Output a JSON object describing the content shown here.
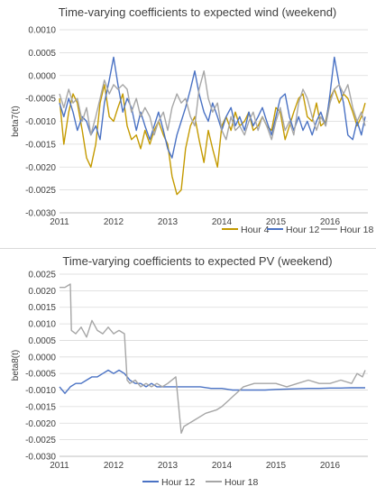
{
  "chart_data": [
    {
      "type": "line",
      "title": "Time-varying coefficients to expected wind (weekend)",
      "xlabel": "",
      "ylabel": "beta7(t)",
      "xlim": [
        2011,
        2016.7
      ],
      "ylim": [
        -0.003,
        0.001
      ],
      "y_ticks": [
        0.001,
        0.0005,
        0,
        -0.0005,
        -0.001,
        -0.0015,
        -0.002,
        -0.0025,
        -0.003
      ],
      "y_tick_labels": [
        "0.0010",
        "0.0005",
        "0.0000",
        "-0.0005",
        "-0.0010",
        "-0.0015",
        "-0.0020",
        "-0.0025",
        "-0.0030"
      ],
      "x_ticks": [
        2011,
        2012,
        2013,
        2014,
        2015,
        2016
      ],
      "x_tick_labels": [
        "2011",
        "2012",
        "2013",
        "2014",
        "2015",
        "2016"
      ],
      "grid": true,
      "legend_position": "bottom",
      "series": [
        {
          "name": "Hour 4",
          "color": "#c49a00",
          "x": [
            2011.0,
            2011.08,
            2011.17,
            2011.25,
            2011.33,
            2011.42,
            2011.5,
            2011.58,
            2011.67,
            2011.75,
            2011.83,
            2011.92,
            2012.0,
            2012.08,
            2012.17,
            2012.25,
            2012.33,
            2012.42,
            2012.5,
            2012.58,
            2012.67,
            2012.75,
            2012.83,
            2012.92,
            2013.0,
            2013.08,
            2013.17,
            2013.25,
            2013.33,
            2013.42,
            2013.5,
            2013.58,
            2013.67,
            2013.75,
            2013.83,
            2013.92,
            2014.0,
            2014.08,
            2014.17,
            2014.25,
            2014.33,
            2014.42,
            2014.5,
            2014.58,
            2014.67,
            2014.75,
            2014.83,
            2014.92,
            2015.0,
            2015.08,
            2015.17,
            2015.25,
            2015.33,
            2015.42,
            2015.5,
            2015.58,
            2015.67,
            2015.75,
            2015.83,
            2015.92,
            2016.0,
            2016.08,
            2016.17,
            2016.25,
            2016.33,
            2016.42,
            2016.5,
            2016.58,
            2016.65
          ],
          "values": [
            -0.0005,
            -0.0015,
            -0.0008,
            -0.0004,
            -0.0006,
            -0.0012,
            -0.0018,
            -0.002,
            -0.0015,
            -0.0006,
            -0.0002,
            -0.0009,
            -0.001,
            -0.0007,
            -0.0004,
            -0.0011,
            -0.0014,
            -0.0013,
            -0.0016,
            -0.0012,
            -0.0015,
            -0.0012,
            -0.001,
            -0.0013,
            -0.0015,
            -0.0022,
            -0.0026,
            -0.0025,
            -0.0016,
            -0.0011,
            -0.0009,
            -0.0014,
            -0.0019,
            -0.0012,
            -0.0016,
            -0.002,
            -0.0011,
            -0.0009,
            -0.0012,
            -0.0008,
            -0.0011,
            -0.001,
            -0.0008,
            -0.0012,
            -0.0011,
            -0.0009,
            -0.0011,
            -0.0012,
            -0.0007,
            -0.0008,
            -0.0014,
            -0.0011,
            -0.0008,
            -0.0005,
            -0.0004,
            -0.0009,
            -0.001,
            -0.0006,
            -0.0011,
            -0.001,
            -0.0005,
            -0.0003,
            -0.0006,
            -0.0004,
            -0.0005,
            -0.0008,
            -0.0011,
            -0.0009,
            -0.0006
          ]
        },
        {
          "name": "Hour 12",
          "color": "#4a72c4",
          "x": [
            2011.0,
            2011.08,
            2011.17,
            2011.25,
            2011.33,
            2011.42,
            2011.5,
            2011.58,
            2011.67,
            2011.75,
            2011.83,
            2011.92,
            2012.0,
            2012.08,
            2012.17,
            2012.25,
            2012.33,
            2012.42,
            2012.5,
            2012.58,
            2012.67,
            2012.75,
            2012.83,
            2012.92,
            2013.0,
            2013.08,
            2013.17,
            2013.25,
            2013.33,
            2013.42,
            2013.5,
            2013.58,
            2013.67,
            2013.75,
            2013.83,
            2013.92,
            2014.0,
            2014.08,
            2014.17,
            2014.25,
            2014.33,
            2014.42,
            2014.5,
            2014.58,
            2014.67,
            2014.75,
            2014.83,
            2014.92,
            2015.0,
            2015.08,
            2015.17,
            2015.25,
            2015.33,
            2015.42,
            2015.5,
            2015.58,
            2015.67,
            2015.75,
            2015.83,
            2015.92,
            2016.0,
            2016.08,
            2016.17,
            2016.25,
            2016.33,
            2016.42,
            2016.5,
            2016.58,
            2016.65
          ],
          "values": [
            -0.0006,
            -0.0009,
            -0.0005,
            -0.0008,
            -0.0012,
            -0.0009,
            -0.001,
            -0.0013,
            -0.0011,
            -0.0014,
            -0.0006,
            -0.0001,
            0.0004,
            -0.0002,
            -0.0008,
            -0.0005,
            -0.0007,
            -0.0012,
            -0.0008,
            -0.0011,
            -0.0014,
            -0.0011,
            -0.0008,
            -0.0012,
            -0.0016,
            -0.0018,
            -0.0013,
            -0.001,
            -0.0007,
            -0.0003,
            0.0001,
            -0.0004,
            -0.0008,
            -0.001,
            -0.0006,
            -0.0009,
            -0.0012,
            -0.0009,
            -0.0007,
            -0.0011,
            -0.0009,
            -0.0012,
            -0.0008,
            -0.0011,
            -0.0009,
            -0.0007,
            -0.001,
            -0.0013,
            -0.0009,
            -0.0005,
            -0.0004,
            -0.0009,
            -0.0012,
            -0.0009,
            -0.0012,
            -0.001,
            -0.0013,
            -0.001,
            -0.0008,
            -0.0011,
            -0.0004,
            0.0004,
            -0.0002,
            -0.0006,
            -0.0013,
            -0.0014,
            -0.001,
            -0.0013,
            -0.0009
          ]
        },
        {
          "name": "Hour 18",
          "color": "#a6a6a6",
          "x": [
            2011.0,
            2011.08,
            2011.17,
            2011.25,
            2011.33,
            2011.42,
            2011.5,
            2011.58,
            2011.67,
            2011.75,
            2011.83,
            2011.92,
            2012.0,
            2012.08,
            2012.17,
            2012.25,
            2012.33,
            2012.42,
            2012.5,
            2012.58,
            2012.67,
            2012.75,
            2012.83,
            2012.92,
            2013.0,
            2013.08,
            2013.17,
            2013.25,
            2013.33,
            2013.42,
            2013.5,
            2013.58,
            2013.67,
            2013.75,
            2013.83,
            2013.92,
            2014.0,
            2014.08,
            2014.17,
            2014.25,
            2014.33,
            2014.42,
            2014.5,
            2014.58,
            2014.67,
            2014.75,
            2014.83,
            2014.92,
            2015.0,
            2015.08,
            2015.17,
            2015.25,
            2015.33,
            2015.42,
            2015.5,
            2015.58,
            2015.67,
            2015.75,
            2015.83,
            2015.92,
            2016.0,
            2016.08,
            2016.17,
            2016.25,
            2016.33,
            2016.42,
            2016.5,
            2016.58,
            2016.65
          ],
          "values": [
            -0.0004,
            -0.0007,
            -0.0003,
            -0.0006,
            -0.0005,
            -0.001,
            -0.0007,
            -0.0013,
            -0.0009,
            -0.0005,
            -0.0001,
            -0.0004,
            -0.0002,
            -0.0003,
            -0.0002,
            -0.0003,
            -0.0008,
            -0.0005,
            -0.0009,
            -0.0007,
            -0.0009,
            -0.0013,
            -0.001,
            -0.0008,
            -0.0012,
            -0.0007,
            -0.0004,
            -0.0006,
            -0.0005,
            -0.0009,
            -0.0011,
            -0.0003,
            0.0001,
            -0.0005,
            -0.0008,
            -0.0006,
            -0.0012,
            -0.0014,
            -0.0009,
            -0.0012,
            -0.0011,
            -0.0013,
            -0.001,
            -0.0008,
            -0.0012,
            -0.0009,
            -0.0011,
            -0.0014,
            -0.001,
            -0.0007,
            -0.0012,
            -0.001,
            -0.0013,
            -0.0006,
            -0.0003,
            -0.0005,
            -0.0009,
            -0.0012,
            -0.0009,
            -0.0011,
            -0.0006,
            -0.0003,
            -0.0002,
            -0.0004,
            -0.0002,
            -0.0007,
            -0.001,
            -0.0008,
            -0.0011
          ]
        }
      ]
    },
    {
      "type": "line",
      "title": "Time-varying coefficients to expected PV (weekend)",
      "xlabel": "",
      "ylabel": "beta8(t)",
      "xlim": [
        2011,
        2016.7
      ],
      "ylim": [
        -0.003,
        0.0025
      ],
      "y_ticks": [
        0.0025,
        0.002,
        0.0015,
        0.001,
        0.0005,
        0,
        -0.0005,
        -0.001,
        -0.0015,
        -0.002,
        -0.0025,
        -0.003
      ],
      "y_tick_labels": [
        "0.0025",
        "0.0020",
        "0.0015",
        "0.0010",
        "0.0005",
        "0.0000",
        "-0.0005",
        "-0.0010",
        "-0.0015",
        "-0.0020",
        "-0.0025",
        "-0.0030"
      ],
      "x_ticks": [
        2011,
        2012,
        2013,
        2014,
        2015,
        2016
      ],
      "x_tick_labels": [
        "2011",
        "2012",
        "2013",
        "2014",
        "2015",
        "2016"
      ],
      "grid": true,
      "legend_position": "bottom",
      "series": [
        {
          "name": "Hour 12",
          "color": "#4a72c4",
          "x": [
            2011.0,
            2011.1,
            2011.2,
            2011.3,
            2011.4,
            2011.5,
            2011.6,
            2011.7,
            2011.8,
            2011.9,
            2012.0,
            2012.1,
            2012.2,
            2012.3,
            2012.4,
            2012.5,
            2012.6,
            2012.7,
            2012.8,
            2012.9,
            2013.0,
            2013.2,
            2013.4,
            2013.6,
            2013.8,
            2014.0,
            2014.2,
            2014.4,
            2014.6,
            2014.8,
            2015.0,
            2015.2,
            2015.4,
            2015.6,
            2015.8,
            2016.0,
            2016.2,
            2016.4,
            2016.65
          ],
          "values": [
            -0.0009,
            -0.0011,
            -0.0009,
            -0.0008,
            -0.0008,
            -0.0007,
            -0.0006,
            -0.0006,
            -0.0005,
            -0.0004,
            -0.0005,
            -0.0004,
            -0.0005,
            -0.0007,
            -0.0008,
            -0.0008,
            -0.0009,
            -0.0008,
            -0.0009,
            -0.0009,
            -0.0009,
            -0.0009,
            -0.0009,
            -0.0009,
            -0.00095,
            -0.00095,
            -0.001,
            -0.001,
            -0.001,
            -0.001,
            -0.00098,
            -0.00097,
            -0.00096,
            -0.00095,
            -0.00095,
            -0.00094,
            -0.00094,
            -0.00093,
            -0.00093
          ]
        },
        {
          "name": "Hour 18",
          "color": "#a6a6a6",
          "x": [
            2011.0,
            2011.1,
            2011.2,
            2011.22,
            2011.3,
            2011.4,
            2011.5,
            2011.6,
            2011.7,
            2011.8,
            2011.9,
            2012.0,
            2012.1,
            2012.2,
            2012.25,
            2012.3,
            2012.4,
            2012.5,
            2012.6,
            2012.7,
            2012.8,
            2012.9,
            2013.0,
            2013.15,
            2013.25,
            2013.3,
            2013.5,
            2013.7,
            2013.9,
            2014.0,
            2014.2,
            2014.4,
            2014.6,
            2014.8,
            2015.0,
            2015.2,
            2015.4,
            2015.6,
            2015.8,
            2016.0,
            2016.2,
            2016.4,
            2016.5,
            2016.6,
            2016.65
          ],
          "values": [
            0.0021,
            0.0021,
            0.0022,
            0.0008,
            0.0007,
            0.0009,
            0.0006,
            0.0011,
            0.0008,
            0.0007,
            0.0009,
            0.0007,
            0.0008,
            0.0007,
            -0.0007,
            -0.0008,
            -0.0007,
            -0.0009,
            -0.0008,
            -0.0009,
            -0.0008,
            -0.0009,
            -0.0008,
            -0.0006,
            -0.0023,
            -0.0021,
            -0.0019,
            -0.0017,
            -0.0016,
            -0.0015,
            -0.0012,
            -0.0009,
            -0.0008,
            -0.0008,
            -0.0008,
            -0.0009,
            -0.0008,
            -0.0007,
            -0.0008,
            -0.0008,
            -0.0007,
            -0.0008,
            -0.0005,
            -0.0006,
            -0.0004
          ]
        }
      ]
    }
  ]
}
